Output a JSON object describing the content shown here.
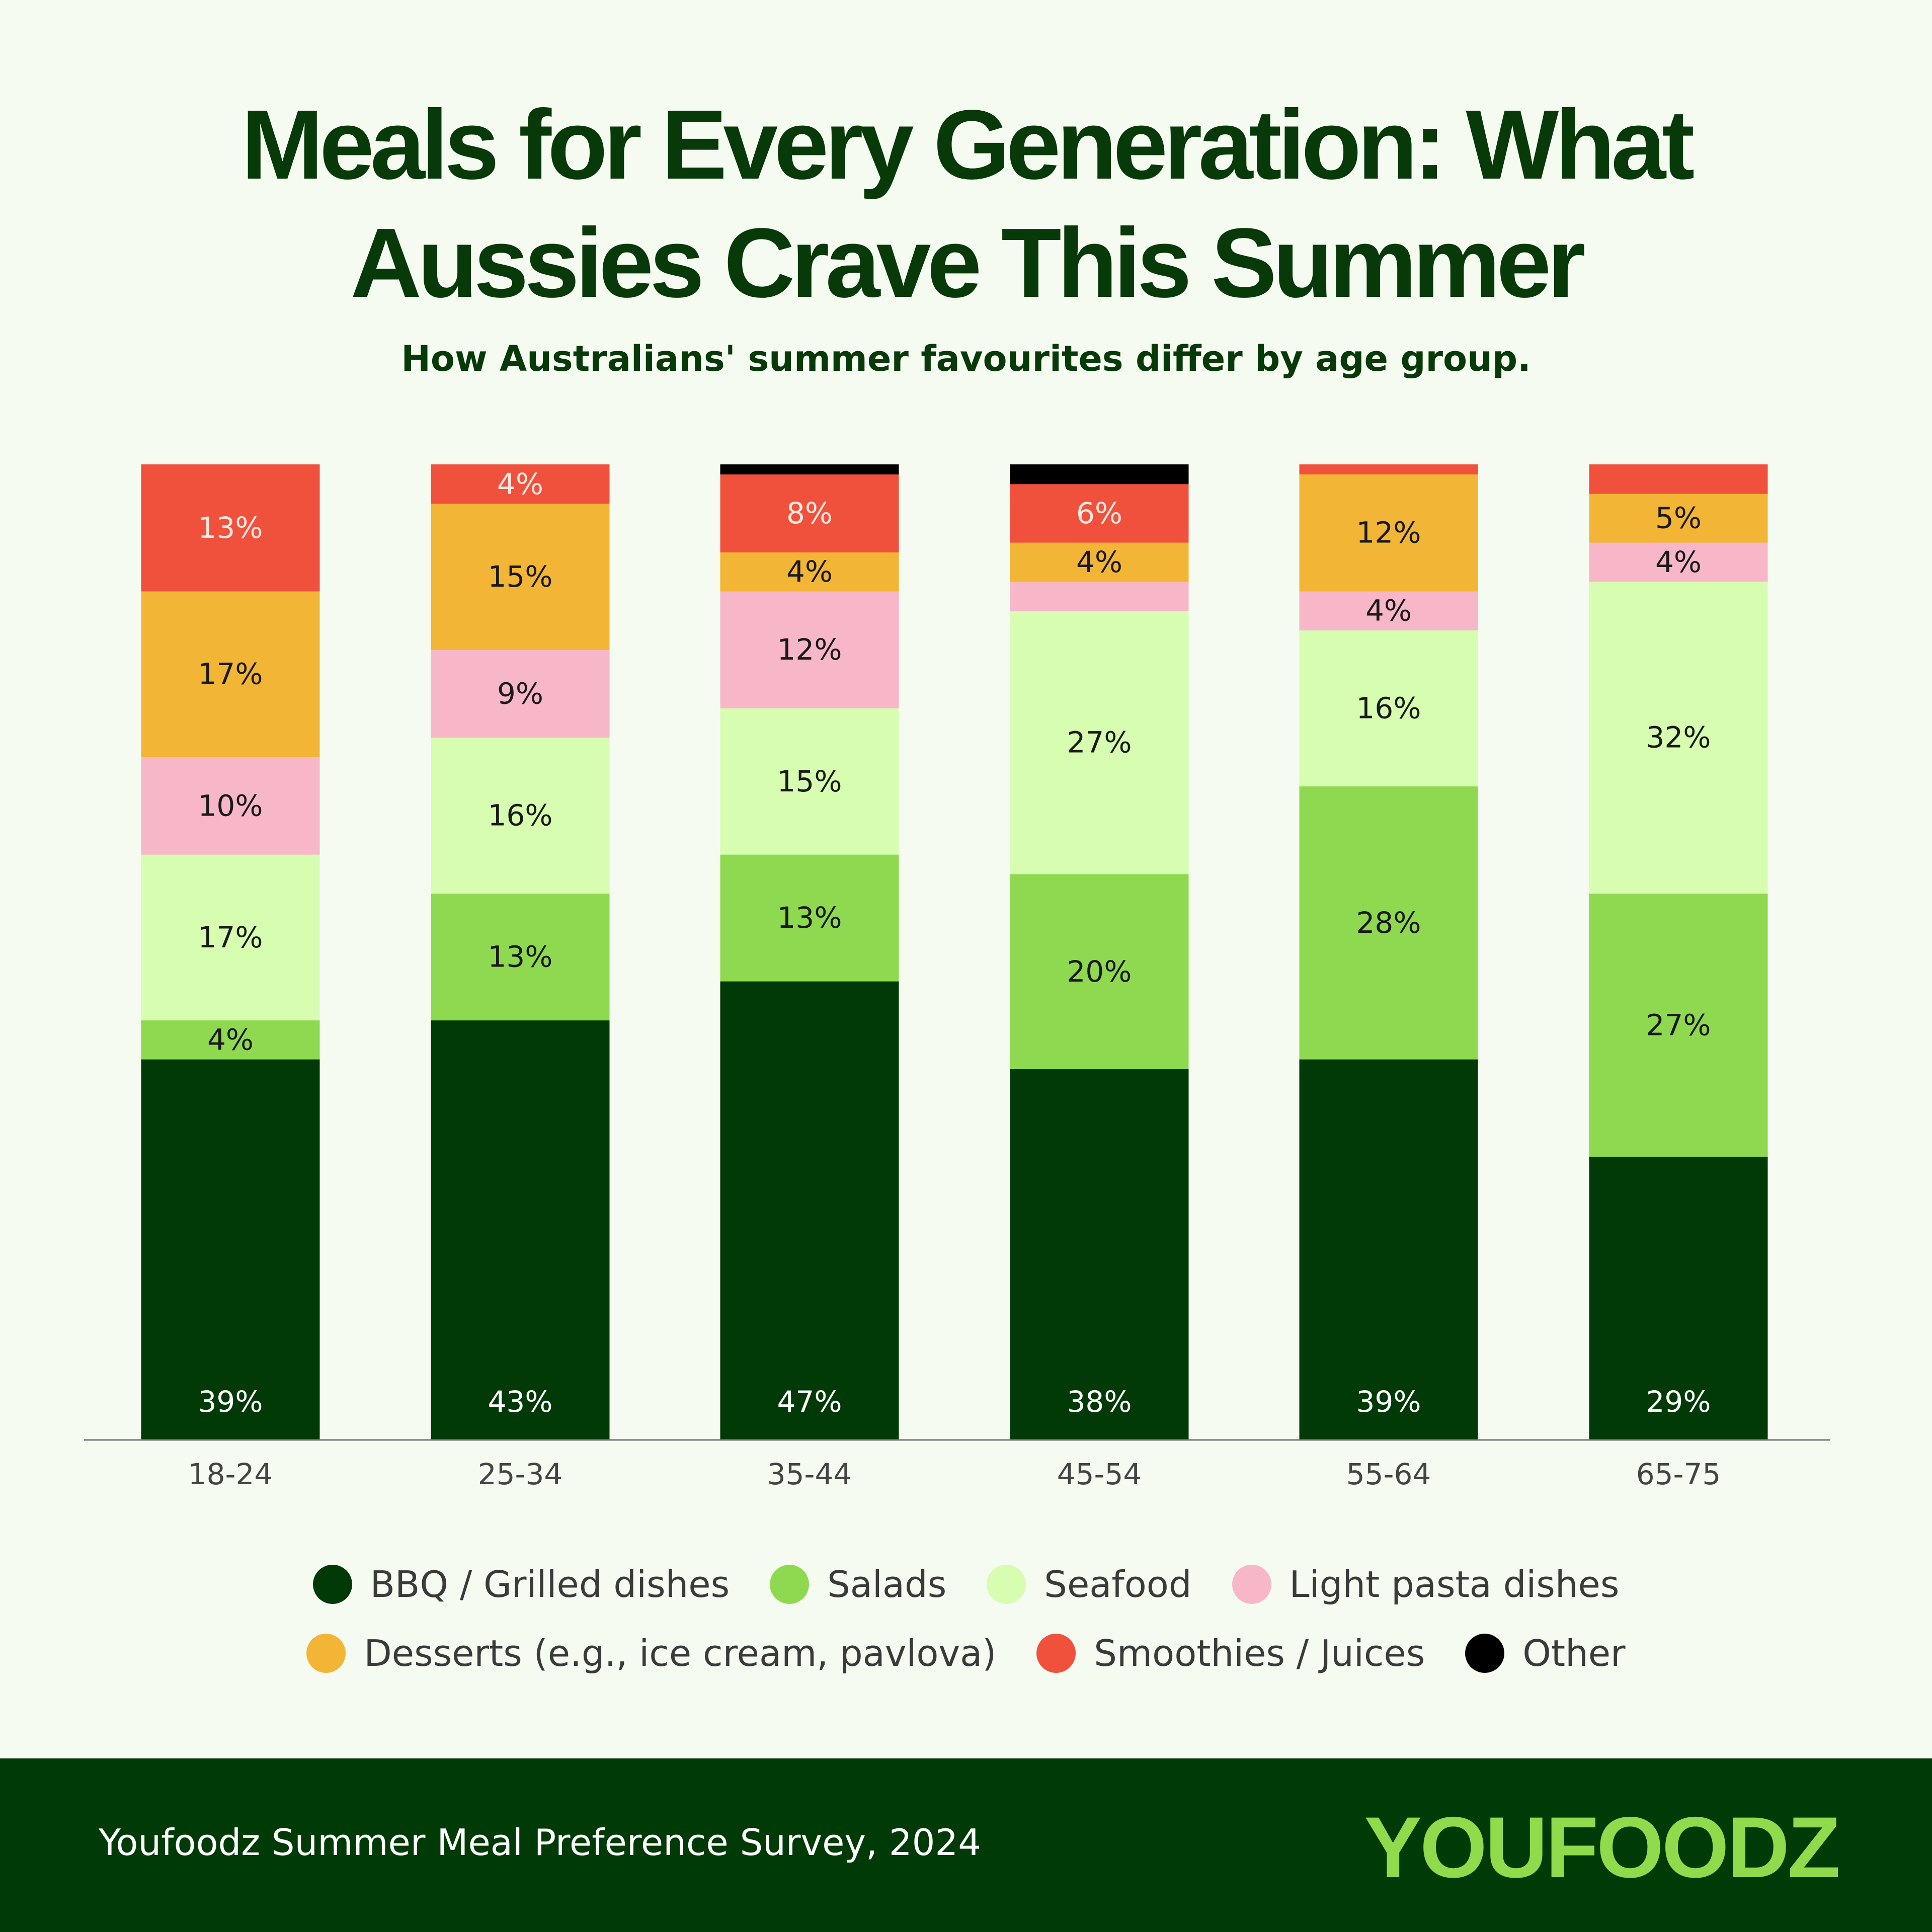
{
  "title_line1": "Meals for Every Generation: What",
  "title_line2": "Aussies Crave This Summer",
  "subtitle": "How Australians' summer favourites differ by age group.",
  "source": "Youfoodz Summer Meal Preference Survey, 2024",
  "logo_text": "YOUFOODZ",
  "chart_data": {
    "type": "bar",
    "stacked": true,
    "categories": [
      "18-24",
      "25-34",
      "35-44",
      "45-54",
      "55-64",
      "65-75"
    ],
    "ylim": [
      0,
      100
    ],
    "grid": false,
    "legend_placement": "bottom",
    "series": [
      {
        "name": "BBQ / Grilled dishes",
        "color": "#023a07",
        "label_color": "#ffffff",
        "values": [
          39,
          43,
          47,
          38,
          39,
          29
        ]
      },
      {
        "name": "Salads",
        "color": "#8fd951",
        "label_color": "#1a1a1a",
        "values": [
          4,
          13,
          13,
          20,
          28,
          27
        ]
      },
      {
        "name": "Seafood",
        "color": "#d6fdb0",
        "label_color": "#1a1a1a",
        "values": [
          17,
          16,
          15,
          27,
          16,
          32
        ]
      },
      {
        "name": "Light pasta dishes",
        "color": "#f7b7c8",
        "label_color": "#1a1a1a",
        "values": [
          10,
          9,
          12,
          3,
          4,
          4
        ]
      },
      {
        "name": "Desserts (e.g., ice cream, pavlova)",
        "color": "#f2b535",
        "label_color": "#1a1a1a",
        "values": [
          17,
          15,
          4,
          4,
          12,
          5
        ]
      },
      {
        "name": "Smoothies / Juices",
        "color": "#ef513c",
        "label_color": "#ffe8e0",
        "values": [
          13,
          4,
          8,
          6,
          1,
          3
        ]
      },
      {
        "name": "Other",
        "color": "#000000",
        "label_color": "#ffffff",
        "values": [
          0,
          0,
          1,
          2,
          0,
          0
        ]
      }
    ]
  }
}
